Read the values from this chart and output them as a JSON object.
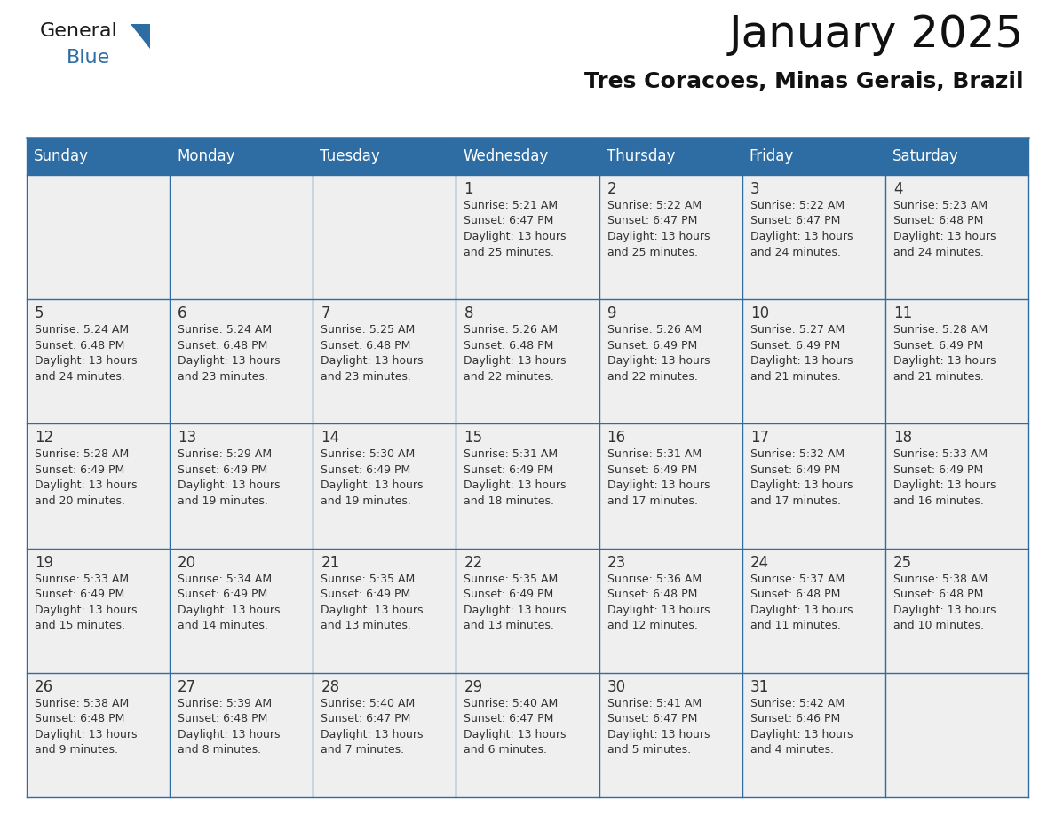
{
  "title": "January 2025",
  "subtitle": "Tres Coracoes, Minas Gerais, Brazil",
  "header_color": "#2E6DA4",
  "header_text_color": "#FFFFFF",
  "cell_bg_color": "#EFEFEF",
  "border_color": "#2E6DA4",
  "text_color": "#333333",
  "days_of_week": [
    "Sunday",
    "Monday",
    "Tuesday",
    "Wednesday",
    "Thursday",
    "Friday",
    "Saturday"
  ],
  "calendar_data": [
    [
      {
        "day": "",
        "info": ""
      },
      {
        "day": "",
        "info": ""
      },
      {
        "day": "",
        "info": ""
      },
      {
        "day": "1",
        "info": "Sunrise: 5:21 AM\nSunset: 6:47 PM\nDaylight: 13 hours\nand 25 minutes."
      },
      {
        "day": "2",
        "info": "Sunrise: 5:22 AM\nSunset: 6:47 PM\nDaylight: 13 hours\nand 25 minutes."
      },
      {
        "day": "3",
        "info": "Sunrise: 5:22 AM\nSunset: 6:47 PM\nDaylight: 13 hours\nand 24 minutes."
      },
      {
        "day": "4",
        "info": "Sunrise: 5:23 AM\nSunset: 6:48 PM\nDaylight: 13 hours\nand 24 minutes."
      }
    ],
    [
      {
        "day": "5",
        "info": "Sunrise: 5:24 AM\nSunset: 6:48 PM\nDaylight: 13 hours\nand 24 minutes."
      },
      {
        "day": "6",
        "info": "Sunrise: 5:24 AM\nSunset: 6:48 PM\nDaylight: 13 hours\nand 23 minutes."
      },
      {
        "day": "7",
        "info": "Sunrise: 5:25 AM\nSunset: 6:48 PM\nDaylight: 13 hours\nand 23 minutes."
      },
      {
        "day": "8",
        "info": "Sunrise: 5:26 AM\nSunset: 6:48 PM\nDaylight: 13 hours\nand 22 minutes."
      },
      {
        "day": "9",
        "info": "Sunrise: 5:26 AM\nSunset: 6:49 PM\nDaylight: 13 hours\nand 22 minutes."
      },
      {
        "day": "10",
        "info": "Sunrise: 5:27 AM\nSunset: 6:49 PM\nDaylight: 13 hours\nand 21 minutes."
      },
      {
        "day": "11",
        "info": "Sunrise: 5:28 AM\nSunset: 6:49 PM\nDaylight: 13 hours\nand 21 minutes."
      }
    ],
    [
      {
        "day": "12",
        "info": "Sunrise: 5:28 AM\nSunset: 6:49 PM\nDaylight: 13 hours\nand 20 minutes."
      },
      {
        "day": "13",
        "info": "Sunrise: 5:29 AM\nSunset: 6:49 PM\nDaylight: 13 hours\nand 19 minutes."
      },
      {
        "day": "14",
        "info": "Sunrise: 5:30 AM\nSunset: 6:49 PM\nDaylight: 13 hours\nand 19 minutes."
      },
      {
        "day": "15",
        "info": "Sunrise: 5:31 AM\nSunset: 6:49 PM\nDaylight: 13 hours\nand 18 minutes."
      },
      {
        "day": "16",
        "info": "Sunrise: 5:31 AM\nSunset: 6:49 PM\nDaylight: 13 hours\nand 17 minutes."
      },
      {
        "day": "17",
        "info": "Sunrise: 5:32 AM\nSunset: 6:49 PM\nDaylight: 13 hours\nand 17 minutes."
      },
      {
        "day": "18",
        "info": "Sunrise: 5:33 AM\nSunset: 6:49 PM\nDaylight: 13 hours\nand 16 minutes."
      }
    ],
    [
      {
        "day": "19",
        "info": "Sunrise: 5:33 AM\nSunset: 6:49 PM\nDaylight: 13 hours\nand 15 minutes."
      },
      {
        "day": "20",
        "info": "Sunrise: 5:34 AM\nSunset: 6:49 PM\nDaylight: 13 hours\nand 14 minutes."
      },
      {
        "day": "21",
        "info": "Sunrise: 5:35 AM\nSunset: 6:49 PM\nDaylight: 13 hours\nand 13 minutes."
      },
      {
        "day": "22",
        "info": "Sunrise: 5:35 AM\nSunset: 6:49 PM\nDaylight: 13 hours\nand 13 minutes."
      },
      {
        "day": "23",
        "info": "Sunrise: 5:36 AM\nSunset: 6:48 PM\nDaylight: 13 hours\nand 12 minutes."
      },
      {
        "day": "24",
        "info": "Sunrise: 5:37 AM\nSunset: 6:48 PM\nDaylight: 13 hours\nand 11 minutes."
      },
      {
        "day": "25",
        "info": "Sunrise: 5:38 AM\nSunset: 6:48 PM\nDaylight: 13 hours\nand 10 minutes."
      }
    ],
    [
      {
        "day": "26",
        "info": "Sunrise: 5:38 AM\nSunset: 6:48 PM\nDaylight: 13 hours\nand 9 minutes."
      },
      {
        "day": "27",
        "info": "Sunrise: 5:39 AM\nSunset: 6:48 PM\nDaylight: 13 hours\nand 8 minutes."
      },
      {
        "day": "28",
        "info": "Sunrise: 5:40 AM\nSunset: 6:47 PM\nDaylight: 13 hours\nand 7 minutes."
      },
      {
        "day": "29",
        "info": "Sunrise: 5:40 AM\nSunset: 6:47 PM\nDaylight: 13 hours\nand 6 minutes."
      },
      {
        "day": "30",
        "info": "Sunrise: 5:41 AM\nSunset: 6:47 PM\nDaylight: 13 hours\nand 5 minutes."
      },
      {
        "day": "31",
        "info": "Sunrise: 5:42 AM\nSunset: 6:46 PM\nDaylight: 13 hours\nand 4 minutes."
      },
      {
        "day": "",
        "info": ""
      }
    ]
  ],
  "logo_color_general": "#1a1a1a",
  "logo_color_blue": "#2E6DA4",
  "title_fontsize": 36,
  "subtitle_fontsize": 18,
  "header_fontsize": 12,
  "day_num_fontsize": 12,
  "info_fontsize": 9
}
